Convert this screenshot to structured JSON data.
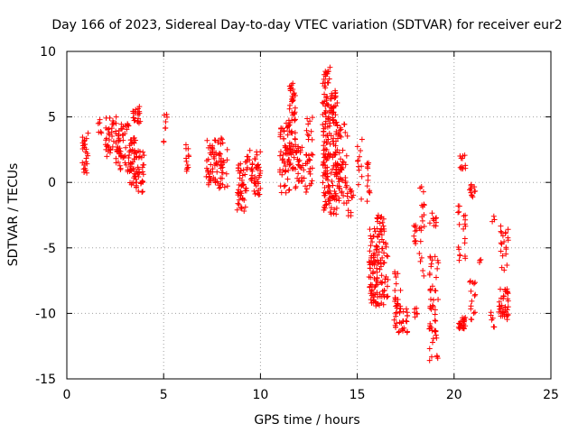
{
  "chart_data": {
    "type": "scatter",
    "title": "Day 166 of 2023, Sidereal Day-to-day VTEC variation (SDTVAR) for receiver eur2",
    "xlabel": "GPS time / hours",
    "ylabel": "SDTVAR / TECUs",
    "xlim": [
      0,
      25
    ],
    "ylim": [
      -15,
      10
    ],
    "xticks": [
      0,
      5,
      10,
      15,
      20,
      25
    ],
    "yticks": [
      -15,
      -10,
      -5,
      0,
      5,
      10
    ],
    "xtick_labels": [
      "0",
      "5",
      "10",
      "15",
      "20",
      "25"
    ],
    "ytick_labels": [
      "-15",
      "-10",
      "-5",
      "0",
      "5",
      "10"
    ],
    "grid": true,
    "marker": "+",
    "color": "#ff0000",
    "clusters": [
      {
        "x": [
          0.8,
          1.1
        ],
        "y": [
          0.5,
          4.2
        ],
        "n": 25
      },
      {
        "x": [
          1.6,
          1.8
        ],
        "y": [
          3.5,
          4.8
        ],
        "n": 6
      },
      {
        "x": [
          2.0,
          2.6
        ],
        "y": [
          1.5,
          5.0
        ],
        "n": 40
      },
      {
        "x": [
          2.6,
          3.2
        ],
        "y": [
          0.8,
          4.5
        ],
        "n": 45
      },
      {
        "x": [
          3.2,
          3.6
        ],
        "y": [
          -0.5,
          3.5
        ],
        "n": 45
      },
      {
        "x": [
          3.4,
          3.8
        ],
        "y": [
          4.5,
          5.8
        ],
        "n": 20
      },
      {
        "x": [
          3.6,
          4.0
        ],
        "y": [
          -1.0,
          2.5
        ],
        "n": 30
      },
      {
        "x": [
          5.0,
          5.2
        ],
        "y": [
          2.5,
          5.2
        ],
        "n": 8
      },
      {
        "x": [
          6.1,
          6.3
        ],
        "y": [
          0.8,
          3.0
        ],
        "n": 12
      },
      {
        "x": [
          7.2,
          7.7
        ],
        "y": [
          -0.2,
          3.3
        ],
        "n": 40
      },
      {
        "x": [
          7.7,
          8.3
        ],
        "y": [
          -0.5,
          3.5
        ],
        "n": 40
      },
      {
        "x": [
          8.8,
          9.3
        ],
        "y": [
          -2.2,
          1.5
        ],
        "n": 45
      },
      {
        "x": [
          9.2,
          9.5
        ],
        "y": [
          1.0,
          2.7
        ],
        "n": 8
      },
      {
        "x": [
          9.5,
          10.0
        ],
        "y": [
          -1.0,
          2.5
        ],
        "n": 40
      },
      {
        "x": [
          11.0,
          11.5
        ],
        "y": [
          -0.8,
          5.0
        ],
        "n": 55
      },
      {
        "x": [
          11.5,
          11.8
        ],
        "y": [
          1.0,
          7.8
        ],
        "n": 55
      },
      {
        "x": [
          11.8,
          12.3
        ],
        "y": [
          -0.5,
          3.5
        ],
        "n": 30
      },
      {
        "x": [
          12.3,
          12.7
        ],
        "y": [
          -1.0,
          5.0
        ],
        "n": 30
      },
      {
        "x": [
          13.2,
          13.6
        ],
        "y": [
          -2.2,
          8.8
        ],
        "n": 110
      },
      {
        "x": [
          13.6,
          14.0
        ],
        "y": [
          -2.5,
          7.0
        ],
        "n": 90
      },
      {
        "x": [
          14.0,
          14.5
        ],
        "y": [
          -1.8,
          4.5
        ],
        "n": 50
      },
      {
        "x": [
          14.5,
          14.8
        ],
        "y": [
          -2.8,
          -0.5
        ],
        "n": 12
      },
      {
        "x": [
          15.0,
          15.3
        ],
        "y": [
          -1.5,
          3.5
        ],
        "n": 12
      },
      {
        "x": [
          15.5,
          15.7
        ],
        "y": [
          -1.5,
          1.5
        ],
        "n": 12
      },
      {
        "x": [
          15.6,
          16.0
        ],
        "y": [
          -9.5,
          -3.5
        ],
        "n": 60
      },
      {
        "x": [
          16.0,
          16.4
        ],
        "y": [
          -9.5,
          -2.5
        ],
        "n": 65
      },
      {
        "x": [
          16.4,
          16.6
        ],
        "y": [
          -9.8,
          -4.5
        ],
        "n": 15
      },
      {
        "x": [
          16.9,
          17.3
        ],
        "y": [
          -11.5,
          -6.8
        ],
        "n": 35
      },
      {
        "x": [
          17.3,
          17.6
        ],
        "y": [
          -11.5,
          -9.5
        ],
        "n": 15
      },
      {
        "x": [
          17.9,
          18.1
        ],
        "y": [
          -10.5,
          -9.5
        ],
        "n": 8
      },
      {
        "x": [
          17.9,
          18.1
        ],
        "y": [
          -4.8,
          -2.8
        ],
        "n": 10
      },
      {
        "x": [
          18.2,
          18.5
        ],
        "y": [
          -7.5,
          0.0
        ],
        "n": 20
      },
      {
        "x": [
          18.7,
          19.2
        ],
        "y": [
          -13.6,
          -5.5
        ],
        "n": 50
      },
      {
        "x": [
          18.7,
          19.1
        ],
        "y": [
          -3.5,
          -2.3
        ],
        "n": 10
      },
      {
        "x": [
          20.2,
          20.6
        ],
        "y": [
          -11.2,
          -10.3
        ],
        "n": 25
      },
      {
        "x": [
          20.2,
          20.6
        ],
        "y": [
          -6.0,
          -1.5
        ],
        "n": 20
      },
      {
        "x": [
          20.3,
          20.6
        ],
        "y": [
          1.0,
          2.2
        ],
        "n": 12
      },
      {
        "x": [
          20.8,
          21.1
        ],
        "y": [
          -10.5,
          -7.5
        ],
        "n": 15
      },
      {
        "x": [
          20.8,
          21.1
        ],
        "y": [
          -1.2,
          0.0
        ],
        "n": 12
      },
      {
        "x": [
          21.3,
          21.4
        ],
        "y": [
          -6.2,
          -5.8
        ],
        "n": 3
      },
      {
        "x": [
          21.9,
          22.1
        ],
        "y": [
          -11.2,
          -9.8
        ],
        "n": 6
      },
      {
        "x": [
          21.9,
          22.1
        ],
        "y": [
          -3.0,
          -2.4
        ],
        "n": 3
      },
      {
        "x": [
          22.3,
          22.8
        ],
        "y": [
          -10.5,
          -8.0
        ],
        "n": 40
      },
      {
        "x": [
          22.4,
          22.8
        ],
        "y": [
          -6.8,
          -3.0
        ],
        "n": 20
      }
    ]
  }
}
